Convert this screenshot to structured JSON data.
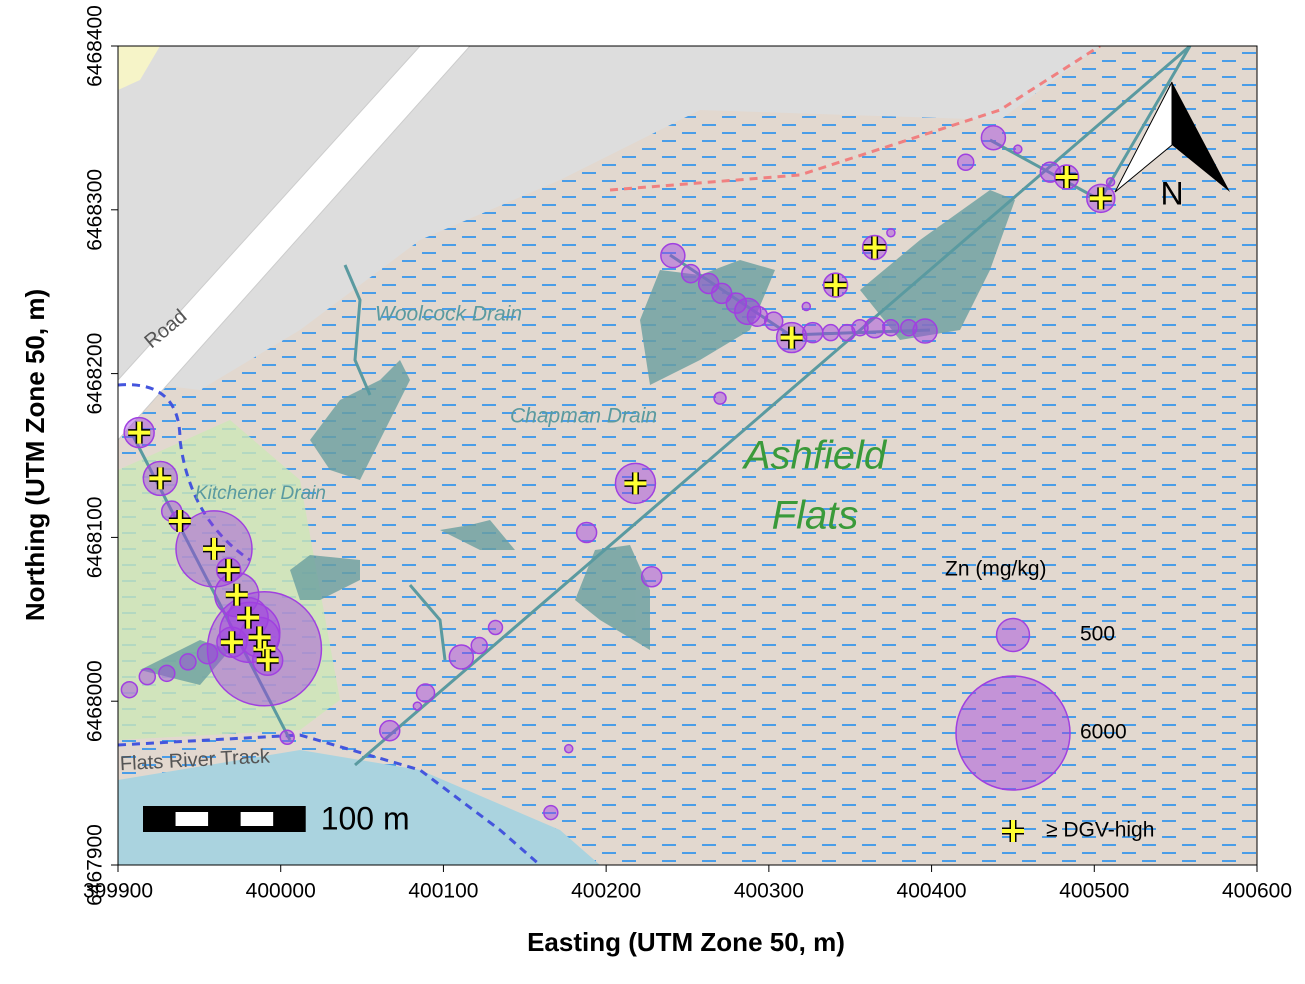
{
  "chart_data": {
    "type": "bubble",
    "xlabel": "Easting (UTM Zone 50, m)",
    "ylabel": "Northing (UTM Zone 50, m)",
    "xlim": [
      399900,
      400600
    ],
    "xticks": [
      399900,
      400000,
      400100,
      400200,
      400300,
      400400,
      400500,
      400600
    ],
    "ylim": [
      6467900,
      6468400
    ],
    "yticks": [
      6467900,
      6468000,
      6468100,
      6468200,
      6468300,
      6468400
    ],
    "x": [
      399913,
      399926,
      399933,
      399938,
      399959,
      399968,
      399973,
      399980,
      399981,
      399990,
      399970,
      399987,
      399992,
      399907,
      399918,
      399930,
      399943,
      399955,
      400004,
      400067,
      400089,
      400084,
      400111,
      400122,
      400132,
      400188,
      400218,
      400228,
      400270,
      400166,
      400177,
      400241,
      400252,
      400263,
      400271,
      400280,
      400287,
      400293,
      400303,
      400314,
      400327,
      400338,
      400348,
      400356,
      400365,
      400375,
      400386,
      400396,
      400323,
      400341,
      400365,
      400375,
      400421,
      400438,
      400453,
      400473,
      400483,
      400504,
      400510
    ],
    "y": [
      6468164,
      6468136,
      6468116,
      6468110,
      6468093,
      6468080,
      6468065,
      6468051,
      6468042,
      6468032,
      6468036,
      6468039,
      6468025,
      6468007,
      6468015,
      6468017,
      6468024,
      6468029,
      6467978,
      6467982,
      6468005,
      6467997,
      6468027,
      6468034,
      6468045,
      6468103,
      6468133,
      6468076,
      6468185,
      6467932,
      6467971,
      6468272,
      6468261,
      6468255,
      6468249,
      6468243,
      6468238,
      6468235,
      6468232,
      6468222,
      6468225,
      6468225,
      6468225,
      6468228,
      6468228,
      6468228,
      6468228,
      6468226,
      6468241,
      6468254,
      6468277,
      6468286,
      6468329,
      6468344,
      6468337,
      6468323,
      6468320,
      6468307,
      6468317
    ],
    "values": [
      415,
      533,
      185,
      185,
      2666,
      266,
      893,
      738,
      1661,
      6000,
      415,
      738,
      415,
      118,
      118,
      118,
      118,
      185,
      90,
      185,
      150,
      30,
      266,
      118,
      90,
      185,
      738,
      185,
      66,
      90,
      30,
      266,
      150,
      185,
      185,
      185,
      312,
      185,
      150,
      415,
      185,
      118,
      118,
      118,
      185,
      118,
      118,
      266,
      30,
      266,
      266,
      30,
      118,
      266,
      30,
      185,
      266,
      362,
      30
    ],
    "dgv_high": [
      true,
      true,
      false,
      true,
      true,
      true,
      true,
      true,
      false,
      true,
      true,
      true,
      true,
      false,
      false,
      false,
      false,
      false,
      false,
      false,
      false,
      false,
      false,
      false,
      false,
      false,
      true,
      false,
      false,
      false,
      false,
      false,
      false,
      false,
      false,
      false,
      false,
      false,
      false,
      true,
      false,
      false,
      false,
      false,
      false,
      false,
      false,
      false,
      false,
      true,
      true,
      false,
      false,
      false,
      false,
      false,
      true,
      true,
      false
    ],
    "color": "#a040e0",
    "cross_color": "#ffff33",
    "legend_title": "Zn (mg/kg)",
    "legend_sizes": [
      500,
      6000
    ],
    "cross_label": "≥ DGV-high",
    "scale_bar": {
      "length": 100,
      "label": "100 m"
    },
    "north": "N",
    "map_labels": [
      "Road",
      "Woolcock Drain",
      "Chapman Drain",
      "Kitchener Drain",
      "Ashfield",
      "Flats",
      "Flats River Track"
    ]
  }
}
